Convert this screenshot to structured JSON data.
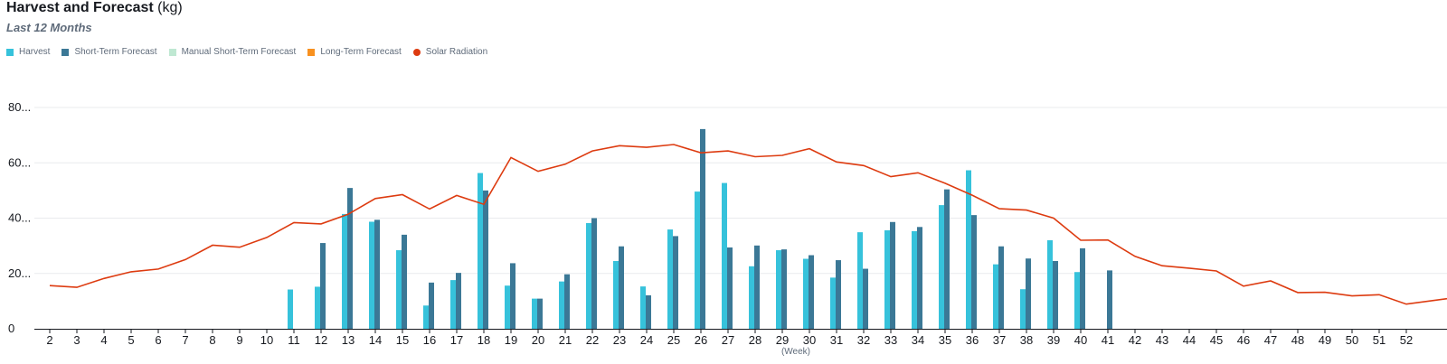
{
  "header": {
    "title_main": "Harvest and Forecast",
    "title_unit": " (kg)",
    "subtitle": "Last 12 Months"
  },
  "legend": [
    {
      "label": "Harvest",
      "color": "#36c2db",
      "shape": "square"
    },
    {
      "label": "Short-Term Forecast",
      "color": "#3b7896",
      "shape": "square"
    },
    {
      "label": "Manual Short-Term Forecast",
      "color": "#bfe8d2",
      "shape": "square"
    },
    {
      "label": "Long-Term Forecast",
      "color": "#f89120",
      "shape": "square"
    },
    {
      "label": "Solar Radiation",
      "color": "#dd3b10",
      "shape": "circle"
    }
  ],
  "chart_data": {
    "type": "bar",
    "xlabel": "(Week)",
    "ylabel": "",
    "ylim": [
      0,
      80
    ],
    "y_ticks": [
      {
        "value": 0,
        "label": "0"
      },
      {
        "value": 20,
        "label": "20..."
      },
      {
        "value": 40,
        "label": "40..."
      },
      {
        "value": 60,
        "label": "60..."
      },
      {
        "value": 80,
        "label": "80..."
      }
    ],
    "grid": true,
    "legend_position": "top-left",
    "categories": [
      "2",
      "3",
      "4",
      "5",
      "6",
      "7",
      "8",
      "9",
      "10",
      "11",
      "12",
      "13",
      "14",
      "15",
      "16",
      "17",
      "18",
      "19",
      "20",
      "21",
      "22",
      "23",
      "24",
      "25",
      "26",
      "27",
      "28",
      "29",
      "30",
      "31",
      "32",
      "33",
      "34",
      "35",
      "36",
      "37",
      "38",
      "39",
      "40",
      "41",
      "42",
      "43",
      "44",
      "45",
      "46",
      "47",
      "48",
      "49",
      "50",
      "51",
      "52"
    ],
    "series": [
      {
        "name": "Harvest",
        "type": "bar",
        "color": "#36c2db",
        "values": [
          null,
          null,
          null,
          null,
          null,
          null,
          null,
          null,
          null,
          14.2,
          15.2,
          41.5,
          38.7,
          28.4,
          8.4,
          17.6,
          56.3,
          15.6,
          10.9,
          17.1,
          38.2,
          24.5,
          15.3,
          35.9,
          49.6,
          52.7,
          22.6,
          28.4,
          25.3,
          18.5,
          34.9,
          35.6,
          35.3,
          44.7,
          57.3,
          23.3,
          14.3,
          32.0,
          20.5,
          null,
          null,
          null,
          null,
          null,
          null,
          null,
          null,
          null,
          null,
          null,
          null
        ]
      },
      {
        "name": "Short-Term Forecast",
        "type": "bar",
        "color": "#3b7896",
        "values": [
          null,
          null,
          null,
          null,
          null,
          null,
          null,
          null,
          null,
          null,
          31.0,
          50.9,
          39.4,
          34.0,
          16.7,
          20.2,
          50.0,
          23.7,
          10.9,
          19.7,
          40.0,
          29.8,
          12.1,
          33.5,
          72.2,
          29.4,
          30.1,
          28.7,
          26.6,
          24.8,
          21.7,
          38.6,
          36.8,
          50.4,
          41.1,
          29.8,
          25.4,
          24.5,
          29.1,
          21.1,
          null,
          null,
          null,
          null,
          null,
          null,
          null,
          null,
          null,
          null,
          null
        ]
      },
      {
        "name": "Manual Short-Term Forecast",
        "type": "bar",
        "color": "#bfe8d2",
        "values": [
          null,
          null,
          null,
          null,
          null,
          null,
          null,
          null,
          null,
          null,
          null,
          null,
          null,
          null,
          null,
          null,
          null,
          null,
          null,
          null,
          null,
          null,
          null,
          null,
          null,
          null,
          null,
          null,
          null,
          null,
          null,
          null,
          null,
          null,
          null,
          null,
          null,
          null,
          null,
          null,
          null,
          null,
          null,
          null,
          null,
          null,
          null,
          null,
          null,
          null,
          null
        ]
      },
      {
        "name": "Long-Term Forecast",
        "type": "bar",
        "color": "#f89120",
        "values": [
          null,
          null,
          null,
          null,
          null,
          null,
          null,
          null,
          null,
          null,
          null,
          null,
          null,
          null,
          null,
          null,
          null,
          null,
          null,
          null,
          null,
          null,
          null,
          null,
          null,
          null,
          null,
          null,
          null,
          null,
          null,
          null,
          null,
          null,
          null,
          null,
          null,
          null,
          null,
          null,
          null,
          null,
          null,
          null,
          null,
          null,
          null,
          null,
          null,
          null,
          null
        ]
      },
      {
        "name": "Solar Radiation",
        "type": "line",
        "color": "#dd3b10",
        "values": [
          15.6,
          15.0,
          18.2,
          20.6,
          21.6,
          25.0,
          30.2,
          29.5,
          33.0,
          38.4,
          37.9,
          41.4,
          47.1,
          48.5,
          43.3,
          48.2,
          45.0,
          61.9,
          56.9,
          59.5,
          64.3,
          66.2,
          65.6,
          66.6,
          63.6,
          64.3,
          62.2,
          62.7,
          65.1,
          60.3,
          59.0,
          55.0,
          56.4,
          52.6,
          48.3,
          43.4,
          42.9,
          40.0,
          32.0,
          32.1,
          26.2,
          22.8,
          21.9,
          20.9,
          15.4,
          17.3,
          13.1,
          13.2,
          11.9,
          12.3,
          8.9
        ]
      }
    ]
  }
}
